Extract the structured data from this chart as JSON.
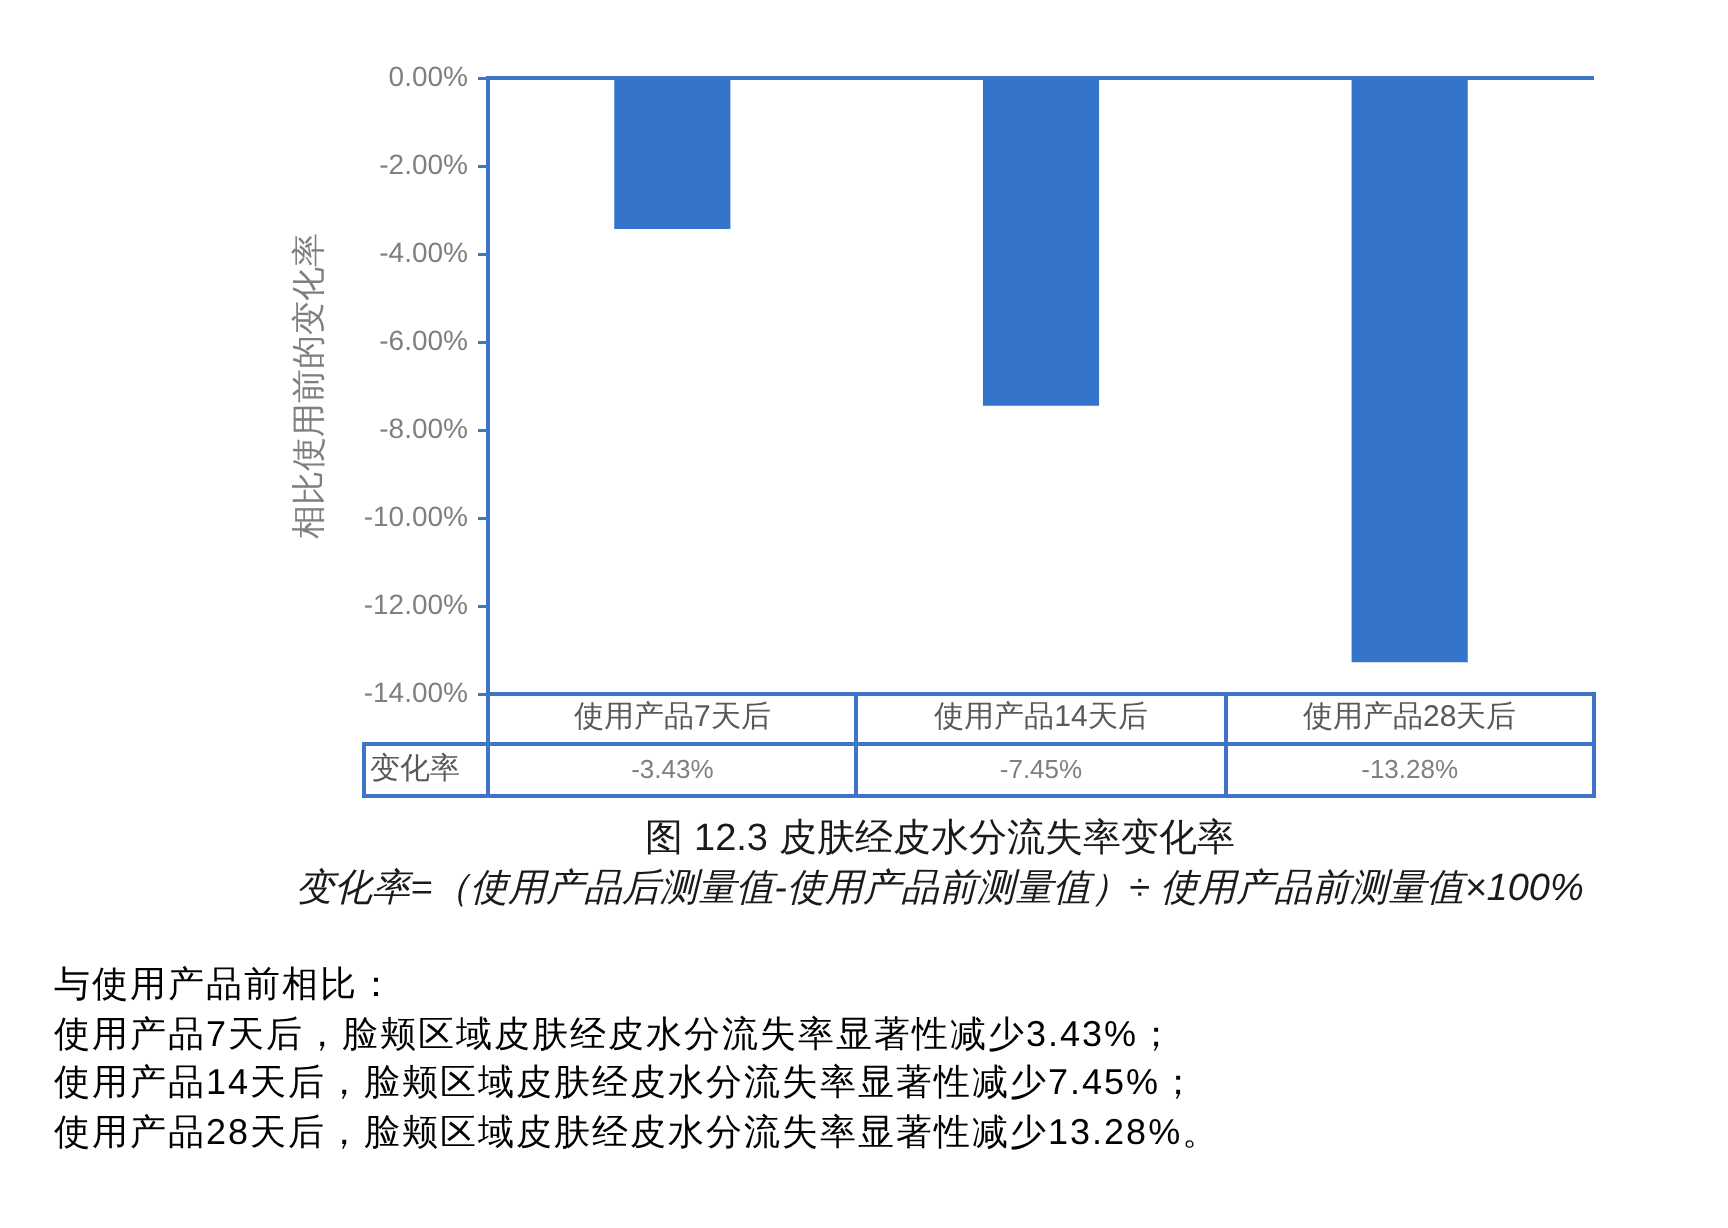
{
  "chart_data": {
    "type": "bar",
    "title": "图 12.3 皮肤经皮水分流失率变化率",
    "subtitle": "变化率=（使用产品后测量值-使用产品前测量值）÷ 使用产品前测量值×100%",
    "ylabel": "相比使用前的变化率",
    "categories": [
      "使用产品7天后",
      "使用产品14天后",
      "使用产品28天后"
    ],
    "series": [
      {
        "name": "变化率",
        "color": "#3474ca",
        "values": [
          -3.43,
          -7.45,
          -13.28
        ],
        "value_labels": [
          "-3.43%",
          "-7.45%",
          "-13.28%"
        ]
      }
    ],
    "ylim": [
      -14,
      0
    ],
    "yticks": [
      {
        "value": -14,
        "label": "-14.00%"
      },
      {
        "value": -12,
        "label": "-12.00%"
      },
      {
        "value": -10,
        "label": "-10.00%"
      },
      {
        "value": -8,
        "label": "-8.00%"
      },
      {
        "value": -6,
        "label": "-6.00%"
      },
      {
        "value": -4,
        "label": "-4.00%"
      },
      {
        "value": -2,
        "label": "-2.00%"
      },
      {
        "value": 0,
        "label": "0.00%"
      }
    ],
    "grid": false,
    "legend": "bottom",
    "annotations": [
      "与使用产品前相比：",
      "使用产品7天后，脸颊区域皮肤经皮水分流失率显著性减少3.43%；",
      "使用产品14天后，脸颊区域皮肤经皮水分流失率显著性减少7.45%；",
      "使用产品28天后，脸颊区域皮肤经皮水分流失率显著性减少13.28%。"
    ]
  }
}
